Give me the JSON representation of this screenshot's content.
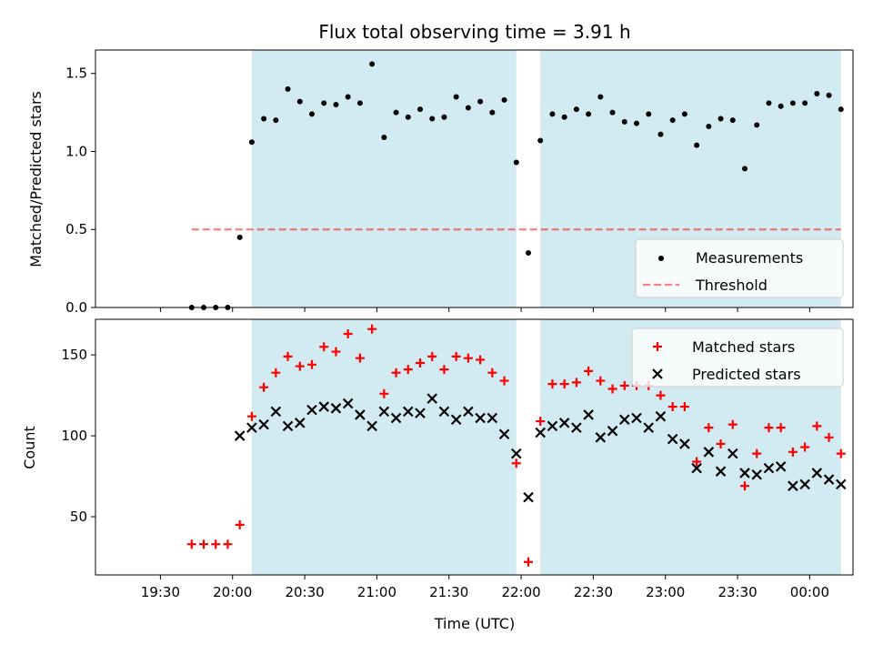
{
  "figure": {
    "title": "Flux total observing time = 3.91 h",
    "xlabel": "Time (UTC)"
  },
  "chart_data": [
    {
      "type": "scatter",
      "panel": "top",
      "ylabel": "Matched/Predicted stars",
      "ylim": [
        0,
        1.65
      ],
      "yticks": [
        0.0,
        0.5,
        1.0,
        1.5
      ],
      "ytick_labels": [
        "0.0",
        "0.5",
        "1.0",
        "1.5"
      ],
      "xlim_minutes": [
        -57,
        258
      ],
      "xticks_minutes": [
        -30,
        0,
        30,
        60,
        90,
        120,
        150,
        180,
        210,
        240
      ],
      "xtick_labels": [
        "19:30",
        "20:00",
        "20:30",
        "21:00",
        "21:30",
        "22:00",
        "22:30",
        "23:00",
        "23:30",
        "00:00"
      ],
      "shaded_intervals_minutes": [
        [
          8,
          118
        ],
        [
          128,
          253
        ]
      ],
      "shade_color": "#add8e6",
      "legend": {
        "placement": "lower right",
        "entries": [
          "Measurements",
          "Threshold"
        ]
      },
      "series": [
        {
          "name": "Measurements",
          "marker": "dot",
          "color": "#000000",
          "x": [
            -17,
            -12,
            -7,
            -2,
            3,
            8,
            13,
            18,
            23,
            28,
            33,
            38,
            43,
            48,
            53,
            58,
            63,
            68,
            73,
            78,
            83,
            88,
            93,
            98,
            103,
            108,
            113,
            118,
            123,
            128,
            133,
            138,
            143,
            148,
            153,
            158,
            163,
            168,
            173,
            178,
            183,
            188,
            193,
            198,
            203,
            208,
            213,
            218,
            223,
            228,
            233,
            238,
            243,
            248,
            253
          ],
          "y": [
            0,
            0,
            0,
            0,
            0.45,
            1.06,
            1.21,
            1.2,
            1.4,
            1.32,
            1.24,
            1.31,
            1.3,
            1.35,
            1.31,
            1.56,
            1.09,
            1.25,
            1.22,
            1.27,
            1.21,
            1.22,
            1.35,
            1.28,
            1.32,
            1.25,
            1.33,
            0.93,
            0.35,
            1.07,
            1.24,
            1.22,
            1.27,
            1.24,
            1.35,
            1.25,
            1.19,
            1.18,
            1.24,
            1.11,
            1.2,
            1.24,
            1.04,
            1.16,
            1.21,
            1.2,
            0.89,
            1.17,
            1.31,
            1.29,
            1.31,
            1.31,
            1.37,
            1.36,
            1.27
          ]
        },
        {
          "name": "Threshold",
          "style": "dashed",
          "color": "#ff0000",
          "alpha": 0.5,
          "x": [
            -17,
            253
          ],
          "y": [
            0.5,
            0.5
          ]
        }
      ]
    },
    {
      "type": "scatter",
      "panel": "bottom",
      "ylabel": "Count",
      "ylim": [
        14,
        172
      ],
      "yticks": [
        50,
        100,
        150
      ],
      "ytick_labels": [
        "50",
        "100",
        "150"
      ],
      "xlim_minutes": [
        -57,
        258
      ],
      "xticks_minutes": [
        -30,
        0,
        30,
        60,
        90,
        120,
        150,
        180,
        210,
        240
      ],
      "xtick_labels": [
        "19:30",
        "20:00",
        "20:30",
        "21:00",
        "21:30",
        "22:00",
        "22:30",
        "23:00",
        "23:30",
        "00:00"
      ],
      "shaded_intervals_minutes": [
        [
          8,
          118
        ],
        [
          128,
          253
        ]
      ],
      "shade_color": "#add8e6",
      "legend": {
        "placement": "upper right",
        "entries": [
          "Matched stars",
          "Predicted stars"
        ]
      },
      "series": [
        {
          "name": "Matched stars",
          "marker": "plus",
          "color": "#ff0000",
          "x": [
            -17,
            -12,
            -7,
            -2,
            3,
            8,
            13,
            18,
            23,
            28,
            33,
            38,
            43,
            48,
            53,
            58,
            63,
            68,
            73,
            78,
            83,
            88,
            93,
            98,
            103,
            108,
            113,
            118,
            123,
            128,
            133,
            138,
            143,
            148,
            153,
            158,
            163,
            168,
            173,
            178,
            183,
            188,
            193,
            198,
            203,
            208,
            213,
            218,
            223,
            228,
            233,
            238,
            243,
            248,
            253
          ],
          "y": [
            33,
            33,
            33,
            33,
            45,
            112,
            130,
            139,
            149,
            143,
            144,
            155,
            152,
            163,
            148,
            166,
            126,
            139,
            141,
            145,
            149,
            141,
            149,
            148,
            147,
            139,
            134,
            83,
            22,
            109,
            132,
            132,
            133,
            140,
            134,
            129,
            131,
            131,
            131,
            125,
            118,
            118,
            84,
            105,
            95,
            107,
            69,
            89,
            105,
            105,
            90,
            93,
            106,
            99,
            89
          ]
        },
        {
          "name": "Predicted stars",
          "marker": "x",
          "color": "#000000",
          "x": [
            3,
            8,
            13,
            18,
            23,
            28,
            33,
            38,
            43,
            48,
            53,
            58,
            63,
            68,
            73,
            78,
            83,
            88,
            93,
            98,
            103,
            108,
            113,
            118,
            123,
            128,
            133,
            138,
            143,
            148,
            153,
            158,
            163,
            168,
            173,
            178,
            183,
            188,
            193,
            198,
            203,
            208,
            213,
            218,
            223,
            228,
            233,
            238,
            243,
            248,
            253
          ],
          "y": [
            100,
            105,
            107,
            115,
            106,
            108,
            116,
            118,
            117,
            120,
            113,
            106,
            115,
            111,
            115,
            114,
            123,
            115,
            110,
            115,
            111,
            111,
            101,
            89,
            62,
            102,
            106,
            108,
            105,
            113,
            99,
            103,
            110,
            111,
            105,
            112,
            98,
            95,
            80,
            90,
            78,
            89,
            77,
            76,
            80,
            81,
            69,
            70,
            77,
            73,
            70
          ]
        }
      ]
    }
  ]
}
